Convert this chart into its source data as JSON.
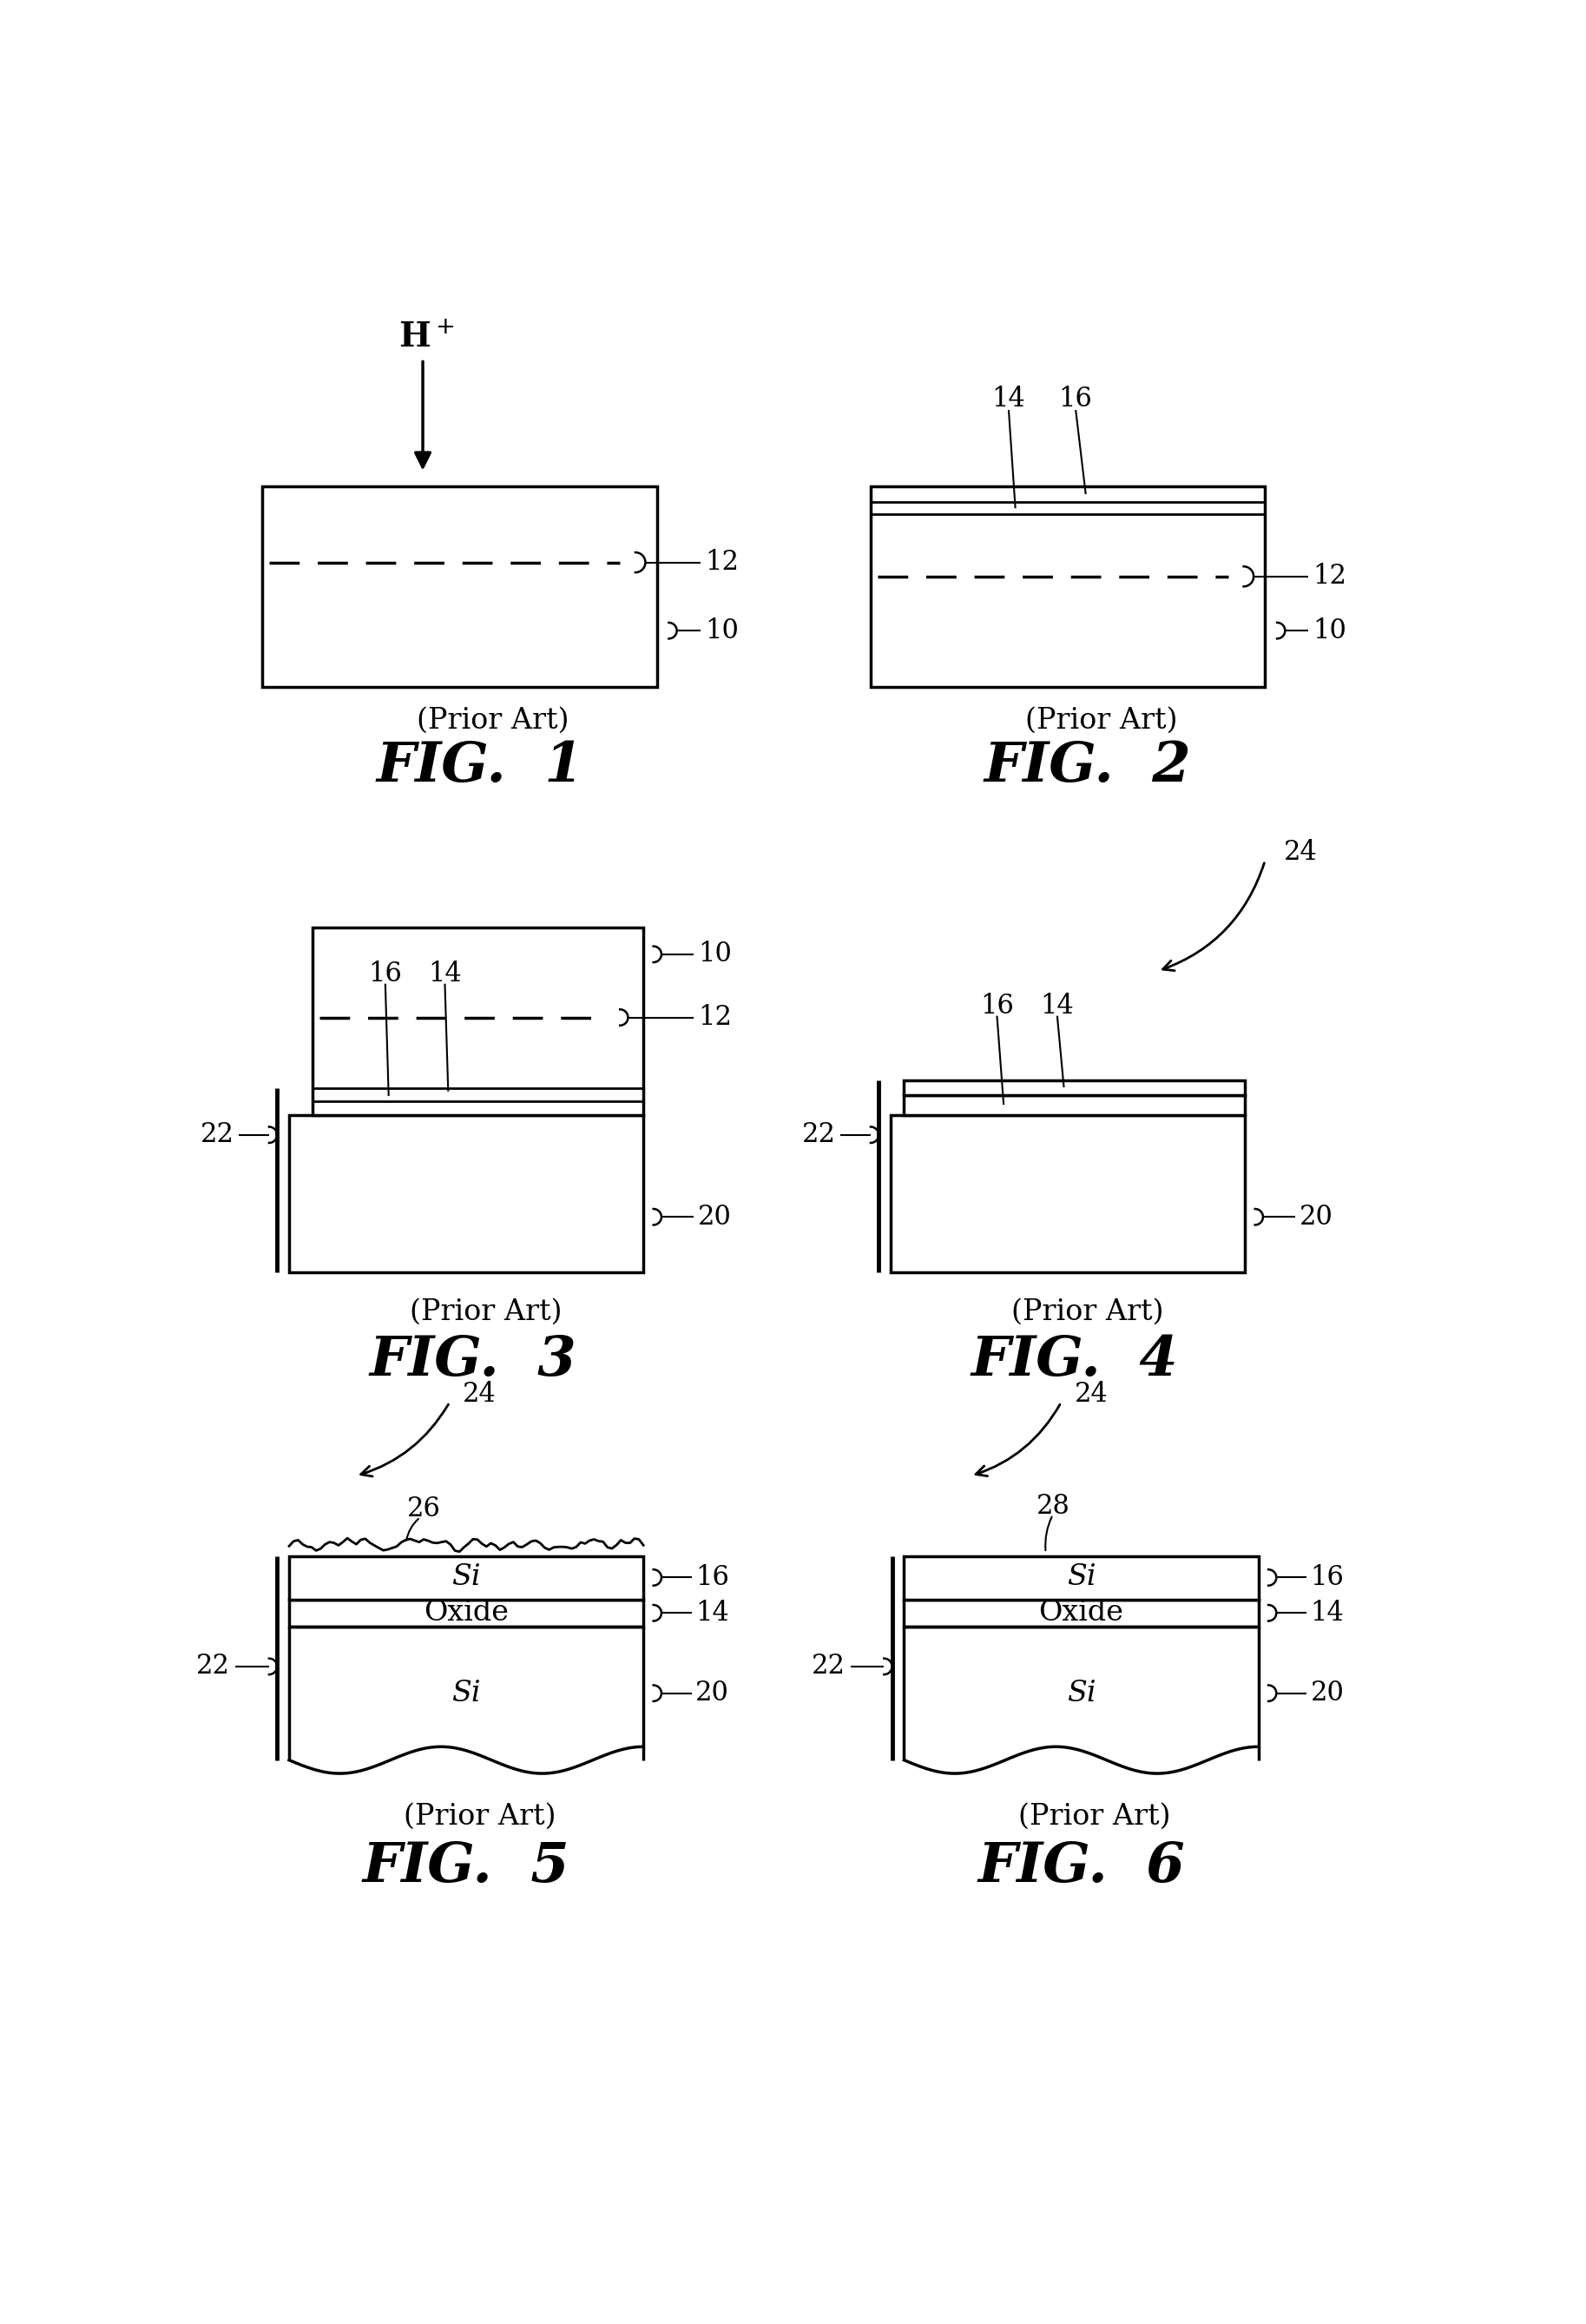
{
  "bg_color": "#ffffff",
  "line_color": "#000000",
  "fig_width": 18.27,
  "fig_height": 26.76,
  "prior_art_text": "(Prior Art)",
  "figures": [
    "FIG.  1",
    "FIG.  2",
    "FIG.  3",
    "FIG.  4",
    "FIG.  5",
    "FIG.  6"
  ]
}
